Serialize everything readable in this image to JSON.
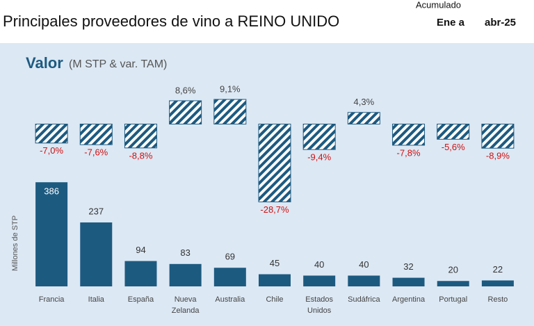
{
  "header": {
    "title": "Principales proveedores de vino a REINO UNIDO",
    "period_label": "Acumulado",
    "period_from": "Ene a",
    "period_to": "abr-25"
  },
  "chart_data": {
    "type": "bar",
    "title": "Valor",
    "subtitle": "(M STP & var. TAM)",
    "y_label": "Millones de STP",
    "categories": [
      "Francia",
      "Italia",
      "España",
      "Nueva Zelanda",
      "Australia",
      "Chile",
      "Estados Unidos",
      "Sudáfrica",
      "Argentina",
      "Portugal",
      "Resto"
    ],
    "ylim": [
      0,
      420
    ],
    "y2lim": [
      -35,
      15
    ],
    "series": [
      {
        "color": "#1d5a80",
        "values": [
          386,
          237,
          94,
          83,
          69,
          45,
          40,
          40,
          32,
          20,
          22
        ]
      },
      {
        "color": "#1d5a80",
        "axis": "y2",
        "values": [
          -7.0,
          -7.6,
          -8.8,
          8.6,
          9.1,
          -28.7,
          -9.4,
          4.3,
          -7.8,
          -5.6,
          -8.9
        ],
        "value_labels": [
          "-7,0%",
          "-7,6%",
          "-8,8%",
          "8,6%",
          "9,1%",
          "-28,7%",
          "-9,4%",
          "4,3%",
          "-7,8%",
          "-5,6%",
          "-8,9%"
        ]
      }
    ]
  }
}
